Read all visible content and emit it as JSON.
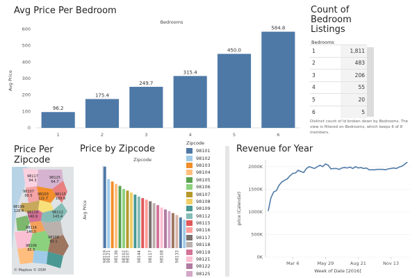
{
  "avg_price": {
    "title": "Avg Price Per Bedroom",
    "chart_data": {
      "type": "bar",
      "title": "Avg Price Per Bedroom",
      "xlabel": "Bedrooms",
      "ylabel": "Avg Price",
      "categories": [
        "1",
        "2",
        "3",
        "4",
        "5",
        "6"
      ],
      "values": [
        96.2,
        175.4,
        249.7,
        315.4,
        450.0,
        584.8
      ],
      "value_labels": [
        "96.2",
        "175.4",
        "249.7",
        "315.4",
        "450.0",
        "584.8"
      ],
      "ylim": [
        0,
        600
      ],
      "yticks": [
        "0",
        "100",
        "200",
        "300",
        "400",
        "500",
        "600"
      ],
      "color": "#4e79a7",
      "grid": false
    }
  },
  "count_listings": {
    "title_lines": [
      "Count of",
      "Bedroom",
      "Listings"
    ],
    "column_header": "Bedrooms",
    "rows": [
      {
        "bedrooms": "1",
        "count": "1,811"
      },
      {
        "bedrooms": "2",
        "count": "483"
      },
      {
        "bedrooms": "3",
        "count": "206"
      },
      {
        "bedrooms": "4",
        "count": "55"
      },
      {
        "bedrooms": "5",
        "count": "20"
      },
      {
        "bedrooms": "6",
        "count": "5"
      }
    ],
    "caption": "Distinct count of Id broken down by Bedrooms. The view is filtered on Bedrooms, which keeps 6 of 8 members."
  },
  "price_per_zipcode": {
    "title_lines": [
      "Price Per",
      "Zipcode"
    ],
    "labels": [
      {
        "zip": "98117",
        "value": "94.3"
      },
      {
        "zip": "98125",
        "value": "64.7"
      },
      {
        "zip": "98107",
        "value": "99.5"
      },
      {
        "zip": "98103",
        "value": "122.7"
      },
      {
        "zip": "98115",
        "value": "109.9"
      },
      {
        "zip": "98199",
        "value": "128.4"
      },
      {
        "zip": "98119",
        "value": "140.9"
      },
      {
        "zip": "98112",
        "value": "143.4"
      },
      {
        "zip": "98116",
        "value": "146.5"
      },
      {
        "zip": "98108",
        "value": "93.1"
      },
      {
        "zip": "98106",
        "value": "85.5"
      }
    ],
    "attribution": "© Mapbox  © OSM"
  },
  "price_by_zipcode": {
    "title": "Price by Zipcode",
    "chart_data": {
      "type": "bar",
      "title": "Price by Zipcode",
      "xlabel": "Zipcode",
      "ylabel": "Avg Price",
      "categories": [
        "98119",
        "98121",
        "98104",
        "98136",
        "98112",
        "98102",
        "98107",
        "98105",
        "98116",
        "98144",
        "98115",
        "98109",
        "98117",
        "98199",
        "98118",
        "98108",
        "98103",
        "98106",
        "98146",
        "98133",
        "98178",
        "98125"
      ],
      "tick_labels": [
        "98119",
        "98121",
        "98136",
        "98102",
        "98107",
        "98144",
        "98117",
        "98108",
        "98133"
      ],
      "values": [
        207,
        175,
        169,
        163,
        158,
        150,
        146,
        141,
        136,
        131,
        127,
        123,
        119,
        114,
        109,
        103,
        98,
        94,
        89,
        84,
        78,
        72
      ],
      "colors": [
        "#4e79a7",
        "#a0cbe8",
        "#f28e2b",
        "#ffbe7d",
        "#59a14f",
        "#8cd17d",
        "#b6992d",
        "#f1ce63",
        "#499894",
        "#86bcb6",
        "#e15759",
        "#ff9d9a",
        "#79706e",
        "#bab0ac",
        "#d37295",
        "#fabfd2",
        "#b07aa1",
        "#d4a6c8",
        "#9d7660",
        "#d7b5a6",
        "#4e79a7",
        "#a0cbe8"
      ]
    }
  },
  "zipcode_legend": {
    "title": "Zipcode",
    "items": [
      {
        "zip": "98101",
        "color": "#4e79a7"
      },
      {
        "zip": "98102",
        "color": "#a0cbe8"
      },
      {
        "zip": "98103",
        "color": "#f28e2b"
      },
      {
        "zip": "98104",
        "color": "#ffbe7d"
      },
      {
        "zip": "98105",
        "color": "#59a14f"
      },
      {
        "zip": "98106",
        "color": "#8cd17d"
      },
      {
        "zip": "98107",
        "color": "#b6992d"
      },
      {
        "zip": "98108",
        "color": "#f1ce63"
      },
      {
        "zip": "98109",
        "color": "#499894"
      },
      {
        "zip": "98112",
        "color": "#86bcb6"
      },
      {
        "zip": "98115",
        "color": "#e15759"
      },
      {
        "zip": "98116",
        "color": "#ff9d9a"
      },
      {
        "zip": "98117",
        "color": "#79706e"
      },
      {
        "zip": "98118",
        "color": "#bab0ac"
      },
      {
        "zip": "98119",
        "color": "#d37295"
      },
      {
        "zip": "98121",
        "color": "#fabfd2"
      },
      {
        "zip": "98122",
        "color": "#b07aa1"
      },
      {
        "zip": "98125",
        "color": "#d4a6c8"
      },
      {
        "zip": "98126",
        "color": "#9d7660"
      }
    ]
  },
  "revenue": {
    "title": "Revenue for Year",
    "chart_data": {
      "type": "line",
      "title": "Revenue for Year",
      "xlabel": "Week of Date [2016]",
      "ylabel": "price (Calendar)",
      "x_ticks": [
        "Mar 6",
        "May 29",
        "Aug 21",
        "Nov 13"
      ],
      "x_tick_weeks": [
        10,
        22,
        34,
        46
      ],
      "y_ticks": [
        "0K",
        "500K",
        "1000K",
        "1500K",
        "2000K"
      ],
      "ylim": [
        0,
        2150000
      ],
      "xlim": [
        0,
        53
      ],
      "color": "#4e79a7",
      "x": [
        1,
        2,
        3,
        4,
        5,
        6,
        7,
        8,
        9,
        10,
        11,
        12,
        13,
        14,
        15,
        16,
        17,
        18,
        19,
        20,
        21,
        22,
        23,
        24,
        25,
        26,
        27,
        28,
        29,
        30,
        31,
        32,
        33,
        34,
        35,
        36,
        37,
        38,
        39,
        40,
        41,
        42,
        43,
        44,
        45,
        46,
        47,
        48,
        49,
        50,
        51,
        52
      ],
      "y": [
        1020000,
        1310000,
        1440000,
        1470000,
        1590000,
        1660000,
        1700000,
        1730000,
        1800000,
        1850000,
        1860000,
        1920000,
        1890000,
        1870000,
        1960000,
        2000000,
        1980000,
        1960000,
        2000000,
        2030000,
        2000000,
        2060000,
        2030000,
        1950000,
        1960000,
        1960000,
        1940000,
        1970000,
        1980000,
        1970000,
        1990000,
        1960000,
        2000000,
        1970000,
        1980000,
        1960000,
        1970000,
        1930000,
        1930000,
        1930000,
        1940000,
        1940000,
        1940000,
        1930000,
        1950000,
        1960000,
        1970000,
        1960000,
        1990000,
        2010000,
        2050000,
        2100000
      ]
    }
  }
}
